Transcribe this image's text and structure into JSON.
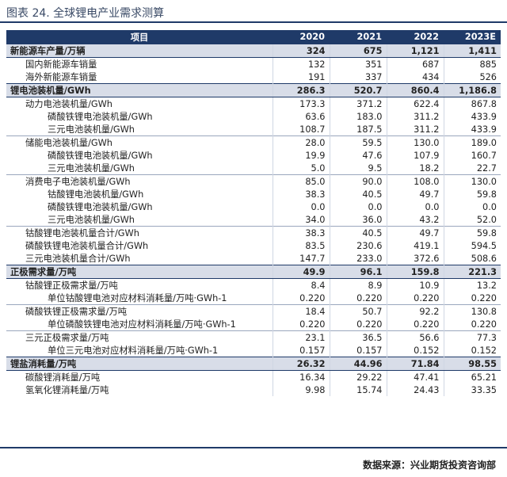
{
  "title": "图表 24.  全球锂电产业需求测算",
  "header": {
    "item": "项目",
    "years": [
      "2020",
      "2021",
      "2022",
      "2023E"
    ]
  },
  "rows": [
    {
      "label": "新能源车产量/万辆",
      "level": 0,
      "values": [
        "324",
        "675",
        "1,121",
        "1,411"
      ]
    },
    {
      "label": "国内新能源车销量",
      "level": 1,
      "values": [
        "132",
        "351",
        "687",
        "885"
      ]
    },
    {
      "label": "海外新能源车销量",
      "level": 1,
      "values": [
        "191",
        "337",
        "434",
        "526"
      ]
    },
    {
      "label": "锂电池装机量/GWh",
      "level": 0,
      "values": [
        "286.3",
        "520.7",
        "860.4",
        "1,186.8"
      ]
    },
    {
      "label": "动力电池装机量/GWh",
      "level": 1,
      "values": [
        "173.3",
        "371.2",
        "622.4",
        "867.8"
      ]
    },
    {
      "label": "磷酸铁锂电池装机量/GWh",
      "level": 2,
      "values": [
        "63.6",
        "183.0",
        "311.2",
        "433.9"
      ]
    },
    {
      "label": "三元电池装机量/GWh",
      "level": 2,
      "values": [
        "108.7",
        "187.5",
        "311.2",
        "433.9"
      ]
    },
    {
      "label": "储能电池装机量/GWh",
      "level": 1,
      "values": [
        "28.0",
        "59.5",
        "130.0",
        "189.0"
      ]
    },
    {
      "label": "磷酸铁锂电池装机量/GWh",
      "level": 2,
      "values": [
        "19.9",
        "47.6",
        "107.9",
        "160.7"
      ]
    },
    {
      "label": "三元电池装机量/GWh",
      "level": 2,
      "values": [
        "5.0",
        "9.5",
        "18.2",
        "22.7"
      ]
    },
    {
      "label": "消费电子电池装机量/GWh",
      "level": 1,
      "values": [
        "85.0",
        "90.0",
        "108.0",
        "130.0"
      ]
    },
    {
      "label": "钴酸锂电池装机量/GWh",
      "level": 2,
      "values": [
        "38.3",
        "40.5",
        "49.7",
        "59.8"
      ]
    },
    {
      "label": "磷酸铁锂电池装机量/GWh",
      "level": 2,
      "values": [
        "0.0",
        "0.0",
        "0.0",
        "0.0"
      ]
    },
    {
      "label": "三元电池装机量/GWh",
      "level": 2,
      "values": [
        "34.0",
        "36.0",
        "43.2",
        "52.0"
      ]
    },
    {
      "label": "钴酸锂电池装机量合计/GWh",
      "level": 1,
      "values": [
        "38.3",
        "40.5",
        "49.7",
        "59.8"
      ]
    },
    {
      "label": "磷酸铁锂电池装机量合计/GWh",
      "level": 1,
      "values": [
        "83.5",
        "230.6",
        "419.1",
        "594.5"
      ]
    },
    {
      "label": "三元电池装机量合计/GWh",
      "level": 1,
      "values": [
        "147.7",
        "233.0",
        "372.6",
        "508.6"
      ]
    },
    {
      "label": "正极需求量/万吨",
      "level": 0,
      "values": [
        "49.9",
        "96.1",
        "159.8",
        "221.3"
      ]
    },
    {
      "label": "钴酸锂正极需求量/万吨",
      "level": 1,
      "values": [
        "8.4",
        "8.9",
        "10.9",
        "13.2"
      ]
    },
    {
      "label": "单位钴酸锂电池对应材料消耗量/万吨·GWh-1",
      "level": 3,
      "values": [
        "0.220",
        "0.220",
        "0.220",
        "0.220"
      ]
    },
    {
      "label": "磷酸铁锂正极需求量/万吨",
      "level": 1,
      "values": [
        "18.4",
        "50.7",
        "92.2",
        "130.8"
      ]
    },
    {
      "label": "单位磷酸铁锂电池对应材料消耗量/万吨·GWh-1",
      "level": 3,
      "values": [
        "0.220",
        "0.220",
        "0.220",
        "0.220"
      ]
    },
    {
      "label": "三元正极需求量/万吨",
      "level": 1,
      "values": [
        "23.1",
        "36.5",
        "56.6",
        "77.3"
      ]
    },
    {
      "label": "单位三元电池对应材料消耗量/万吨·GWh-1",
      "level": 3,
      "values": [
        "0.157",
        "0.157",
        "0.152",
        "0.152"
      ]
    },
    {
      "label": "锂盐消耗量/万吨",
      "level": 0,
      "values": [
        "26.32",
        "44.96",
        "71.84",
        "98.55"
      ]
    },
    {
      "label": "碳酸锂消耗量/万吨",
      "level": 1,
      "values": [
        "16.34",
        "29.22",
        "47.41",
        "65.21"
      ]
    },
    {
      "label": "氢氧化锂消耗量/万吨",
      "level": 1,
      "values": [
        "9.98",
        "15.74",
        "24.43",
        "33.35"
      ]
    }
  ],
  "separators_before": [
    7,
    10,
    14,
    20,
    22
  ],
  "source": "数据来源：兴业期货投资咨询部"
}
